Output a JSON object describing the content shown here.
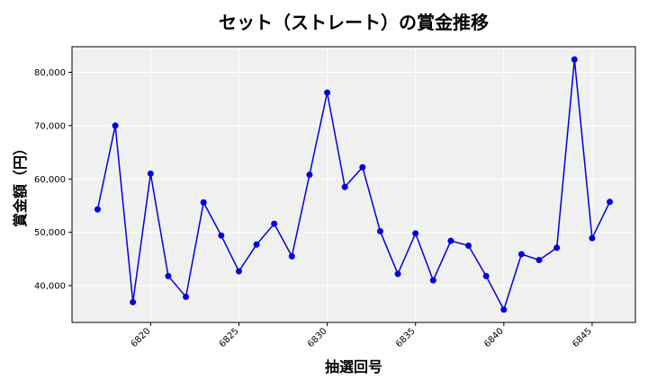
{
  "chart_data": {
    "type": "line",
    "title": "セット（ストレート）の賞金推移",
    "xlabel": "抽選回号",
    "ylabel": "賞金額（円）",
    "x": [
      6817,
      6818,
      6819,
      6820,
      6821,
      6822,
      6823,
      6824,
      6825,
      6826,
      6827,
      6828,
      6829,
      6830,
      6831,
      6832,
      6833,
      6834,
      6835,
      6836,
      6837,
      6838,
      6839,
      6840,
      6841,
      6842,
      6843,
      6844,
      6845,
      6846
    ],
    "series": [
      {
        "values": [
          54300,
          70000,
          36900,
          61000,
          41800,
          37900,
          55600,
          49400,
          42700,
          47700,
          51600,
          45500,
          60800,
          76200,
          58500,
          62200,
          50200,
          42200,
          49800,
          41000,
          48400,
          47500,
          41800,
          35500,
          45900,
          44800,
          47100,
          82400,
          48900,
          55700
        ],
        "color": "#0000dd"
      }
    ],
    "xlim": [
      6815.55,
      6847.45
    ],
    "ylim": [
      33100,
      84800
    ],
    "xticks": [
      6820,
      6825,
      6830,
      6835,
      6840,
      6845
    ],
    "yticks": [
      40000,
      50000,
      60000,
      70000,
      80000
    ],
    "xtick_labels": [
      "6820",
      "6825",
      "6830",
      "6835",
      "6840",
      "6845"
    ],
    "ytick_labels": [
      "40,000",
      "50,000",
      "60,000",
      "70,000",
      "80,000"
    ],
    "grid": true,
    "background": "#f0f0f0"
  }
}
